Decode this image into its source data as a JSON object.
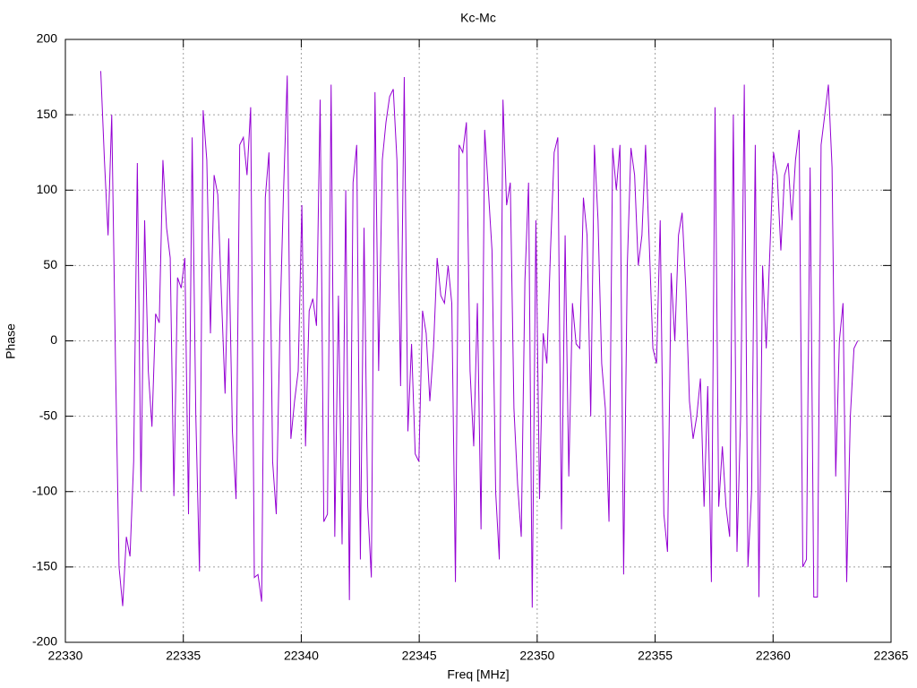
{
  "chart_data": {
    "type": "line",
    "title": "Kc-Mc",
    "xlabel": "Freq [MHz]",
    "ylabel": "Phase",
    "color": "#9400d3",
    "grid": true,
    "xlim": [
      22330,
      22365
    ],
    "xticks": [
      22330,
      22335,
      22340,
      22345,
      22350,
      22355,
      22360,
      22365
    ],
    "ylim": [
      -200,
      200
    ],
    "yticks": [
      -200,
      -150,
      -100,
      -50,
      0,
      50,
      100,
      150,
      200
    ],
    "x": [
      22331.5,
      22331.655,
      22331.81,
      22331.965,
      22332.12,
      22332.275,
      22332.43,
      22332.585,
      22332.74,
      22332.895,
      22333.05,
      22333.205,
      22333.36,
      22333.515,
      22333.67,
      22333.825,
      22333.98,
      22334.135,
      22334.29,
      22334.445,
      22334.6,
      22334.755,
      22334.91,
      22335.065,
      22335.22,
      22335.375,
      22335.53,
      22335.685,
      22335.84,
      22335.995,
      22336.15,
      22336.305,
      22336.46,
      22336.615,
      22336.77,
      22336.925,
      22337.08,
      22337.235,
      22337.39,
      22337.545,
      22337.7,
      22337.855,
      22338.01,
      22338.165,
      22338.32,
      22338.475,
      22338.63,
      22338.785,
      22338.94,
      22339.095,
      22339.25,
      22339.405,
      22339.56,
      22339.715,
      22339.87,
      22340.025,
      22340.18,
      22340.335,
      22340.49,
      22340.645,
      22340.8,
      22340.955,
      22341.11,
      22341.265,
      22341.42,
      22341.575,
      22341.73,
      22341.885,
      22342.04,
      22342.195,
      22342.35,
      22342.505,
      22342.66,
      22342.815,
      22342.97,
      22343.125,
      22343.28,
      22343.435,
      22343.59,
      22343.745,
      22343.9,
      22344.055,
      22344.21,
      22344.365,
      22344.52,
      22344.675,
      22344.83,
      22344.985,
      22345.14,
      22345.295,
      22345.45,
      22345.605,
      22345.76,
      22345.915,
      22346.07,
      22346.225,
      22346.38,
      22346.535,
      22346.69,
      22346.845,
      22347,
      22347.155,
      22347.31,
      22347.465,
      22347.62,
      22347.775,
      22347.93,
      22348.085,
      22348.24,
      22348.395,
      22348.55,
      22348.705,
      22348.86,
      22349.015,
      22349.17,
      22349.325,
      22349.48,
      22349.635,
      22349.79,
      22349.945,
      22350.1,
      22350.255,
      22350.41,
      22350.565,
      22350.72,
      22350.875,
      22351.03,
      22351.185,
      22351.34,
      22351.495,
      22351.65,
      22351.805,
      22351.96,
      22352.115,
      22352.27,
      22352.425,
      22352.58,
      22352.735,
      22352.89,
      22353.045,
      22353.2,
      22353.355,
      22353.51,
      22353.665,
      22353.82,
      22353.975,
      22354.13,
      22354.285,
      22354.44,
      22354.595,
      22354.75,
      22354.905,
      22355.06,
      22355.215,
      22355.37,
      22355.525,
      22355.68,
      22355.835,
      22355.99,
      22356.145,
      22356.3,
      22356.455,
      22356.61,
      22356.765,
      22356.92,
      22357.075,
      22357.23,
      22357.385,
      22357.54,
      22357.695,
      22357.85,
      22358.005,
      22358.16,
      22358.315,
      22358.47,
      22358.625,
      22358.78,
      22358.935,
      22359.09,
      22359.245,
      22359.4,
      22359.555,
      22359.71,
      22359.865,
      22360.02,
      22360.175,
      22360.33,
      22360.485,
      22360.64,
      22360.795,
      22360.95,
      22361.105,
      22361.26,
      22361.415,
      22361.57,
      22361.725,
      22361.88,
      22362.035,
      22362.19,
      22362.345,
      22362.5,
      22362.655,
      22362.81,
      22362.965,
      22363.12,
      22363.275,
      22363.43,
      22363.585
    ],
    "values": [
      179,
      120,
      70,
      150,
      -10,
      -150,
      -176,
      -130,
      -143,
      -80,
      118,
      -100,
      80,
      -20,
      -57,
      18,
      12,
      120,
      75,
      55,
      -103,
      42,
      35,
      55,
      -115,
      135,
      -50,
      -153,
      153,
      120,
      5,
      110,
      97,
      30,
      -35,
      68,
      -60,
      -105,
      130,
      135,
      110,
      155,
      -157,
      -155,
      -173,
      95,
      125,
      -80,
      -115,
      10,
      100,
      176,
      -65,
      -40,
      -20,
      90,
      -70,
      20,
      28,
      10,
      160,
      -120,
      -115,
      170,
      -130,
      30,
      -135,
      100,
      -172,
      105,
      130,
      -145,
      75,
      -110,
      -157,
      165,
      -20,
      120,
      145,
      162,
      167,
      120,
      -30,
      175,
      -60,
      -2,
      -75,
      -80,
      20,
      5,
      -40,
      -5,
      55,
      30,
      25,
      50,
      25,
      -160,
      130,
      125,
      145,
      -20,
      -70,
      25,
      -125,
      140,
      100,
      60,
      -100,
      -145,
      160,
      90,
      105,
      -45,
      -95,
      -130,
      40,
      105,
      -177,
      80,
      -105,
      5,
      -15,
      60,
      125,
      135,
      -125,
      70,
      -90,
      25,
      -2,
      -5,
      95,
      70,
      -50,
      130,
      80,
      -15,
      -45,
      -120,
      128,
      100,
      130,
      -155,
      50,
      128,
      110,
      50,
      70,
      130,
      65,
      -5,
      -15,
      80,
      -115,
      -140,
      45,
      0,
      70,
      85,
      35,
      -40,
      -65,
      -50,
      -25,
      -110,
      -30,
      -160,
      155,
      -110,
      -70,
      -110,
      -130,
      150,
      -140,
      -50,
      170,
      -150,
      -100,
      130,
      -170,
      50,
      -5,
      60,
      125,
      110,
      60,
      110,
      118,
      80,
      120,
      140,
      -150,
      -145,
      115,
      -170,
      -170,
      130,
      150,
      170,
      115,
      -90,
      0,
      25,
      -160,
      -50,
      -5,
      0
    ]
  }
}
